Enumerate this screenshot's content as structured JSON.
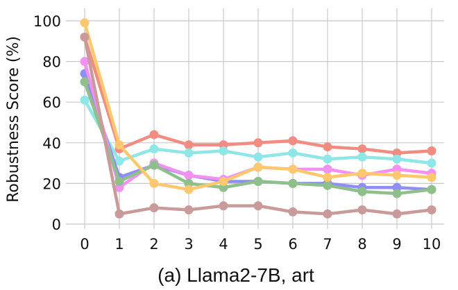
{
  "chart_data": {
    "type": "line",
    "title": "",
    "caption": "(a) Llama2-7B, art",
    "xlabel": "",
    "ylabel": "Robustness Score (%)",
    "x": [
      0,
      1,
      2,
      3,
      4,
      5,
      6,
      7,
      8,
      9,
      10
    ],
    "xlim": [
      0,
      10
    ],
    "ylim": [
      0,
      100
    ],
    "yticks": [
      0,
      20,
      40,
      60,
      80,
      100
    ],
    "grid": true,
    "legend": "none",
    "series": [
      {
        "color": "#f08c82",
        "values": [
          92,
          37,
          44,
          39,
          39,
          40,
          41,
          38,
          37,
          35,
          36
        ]
      },
      {
        "color": "#8fe6e6",
        "values": [
          61,
          31,
          37,
          35,
          36,
          33,
          35,
          32,
          33,
          32,
          30
        ]
      },
      {
        "color": "#8e8ef5",
        "values": [
          74,
          23,
          29,
          24,
          21,
          21,
          20,
          20,
          18,
          18,
          17
        ]
      },
      {
        "color": "#f291f2",
        "values": [
          80,
          18,
          30,
          24,
          22,
          28,
          27,
          27,
          24,
          27,
          25
        ]
      },
      {
        "color": "#8fbf8a",
        "values": [
          70,
          21,
          29,
          20,
          18,
          21,
          20,
          19,
          16,
          15,
          17
        ]
      },
      {
        "color": "#ffc86e",
        "values": [
          99,
          39,
          20,
          17,
          21,
          28,
          27,
          23,
          25,
          24,
          23
        ]
      },
      {
        "color": "#c99a9a",
        "values": [
          92,
          5,
          8,
          7,
          9,
          9,
          6,
          5,
          7,
          5,
          7
        ]
      }
    ]
  }
}
